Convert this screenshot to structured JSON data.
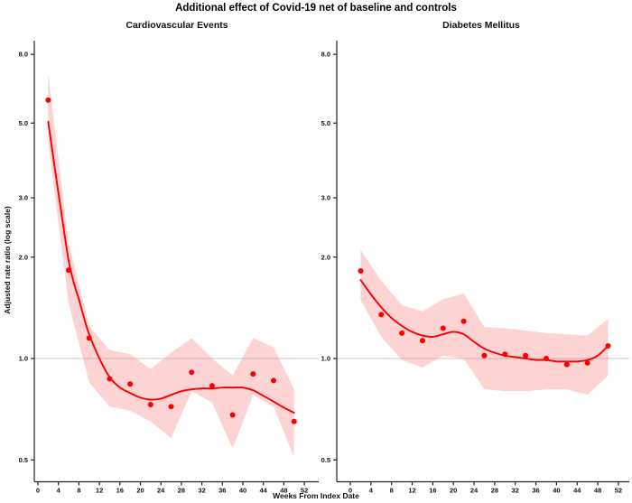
{
  "title": "Additional effect of Covid-19 net of baseline and controls",
  "x_axis_label": "Weeks From Index Date",
  "y_axis_label": "Adjusted rate ratio (log scale)",
  "colors": {
    "line": "#f80000",
    "point": "#f80000",
    "ribbon_fill": "rgba(247,96,100,0.28)",
    "gridline": "#c9c9c9",
    "axis": "#222222",
    "tick_text": "#111111"
  },
  "chart_data": [
    {
      "type": "line",
      "panel_title": "Cardiovascular Events",
      "y_scale": "log",
      "reference_line_y": 1.0,
      "x_ticks": [
        0,
        4,
        8,
        12,
        16,
        20,
        24,
        28,
        32,
        36,
        40,
        44,
        48,
        52
      ],
      "y_tick_labels": [
        "8.0",
        "5.0",
        "3.0",
        "2.0",
        "1.0",
        "0.5"
      ],
      "y_tick_values": [
        8,
        5,
        3,
        2,
        1,
        0.5
      ],
      "xlim": [
        -0.7,
        54.8
      ],
      "ylim": [
        0.43,
        8.8
      ],
      "weeks": [
        2,
        6,
        10,
        14,
        18,
        22,
        26,
        30,
        34,
        38,
        42,
        46,
        50
      ],
      "points": [
        5.85,
        1.83,
        1.15,
        0.87,
        0.84,
        0.73,
        0.72,
        0.91,
        0.83,
        0.68,
        0.9,
        0.86,
        0.65
      ],
      "ribbon_upper": [
        7.0,
        2.2,
        1.25,
        1.06,
        1.03,
        0.93,
        1.04,
        1.15,
        1.0,
        0.89,
        1.15,
        1.08,
        0.81
      ],
      "ribbon_lower": [
        4.4,
        1.46,
        0.85,
        0.72,
        0.7,
        0.65,
        0.58,
        0.8,
        0.74,
        0.54,
        0.78,
        0.72,
        0.51
      ],
      "smooth_line": {
        "x": [
          2,
          3,
          4,
          5,
          6,
          7,
          8,
          9,
          10,
          12,
          14,
          16,
          18,
          20,
          22,
          24,
          26,
          28,
          30,
          32,
          34,
          36,
          38,
          40,
          42,
          44,
          46,
          48,
          50
        ],
        "y": [
          5.05,
          3.95,
          3.1,
          2.45,
          1.95,
          1.68,
          1.5,
          1.32,
          1.18,
          1.0,
          0.88,
          0.82,
          0.79,
          0.765,
          0.755,
          0.76,
          0.78,
          0.8,
          0.81,
          0.815,
          0.815,
          0.82,
          0.82,
          0.82,
          0.805,
          0.775,
          0.745,
          0.715,
          0.69
        ]
      }
    },
    {
      "type": "line",
      "panel_title": "Diabetes Mellitus",
      "y_scale": "log",
      "reference_line_y": 1.0,
      "x_ticks": [
        0,
        4,
        8,
        12,
        16,
        20,
        24,
        28,
        32,
        36,
        40,
        44,
        48,
        52
      ],
      "y_tick_labels": [
        "8.0",
        "5.0",
        "3.0",
        "2.0",
        "1.0",
        "0.5"
      ],
      "y_tick_values": [
        8,
        5,
        3,
        2,
        1,
        0.5
      ],
      "xlim": [
        -2.6,
        54.1
      ],
      "ylim": [
        0.43,
        8.8
      ],
      "weeks": [
        2,
        6,
        10,
        14,
        18,
        22,
        26,
        30,
        34,
        38,
        42,
        46,
        50
      ],
      "points": [
        1.82,
        1.35,
        1.19,
        1.13,
        1.23,
        1.29,
        1.02,
        1.03,
        1.02,
        1.0,
        0.96,
        0.97,
        1.09
      ],
      "ribbon_upper": [
        2.1,
        1.7,
        1.44,
        1.38,
        1.5,
        1.56,
        1.24,
        1.23,
        1.21,
        1.19,
        1.18,
        1.17,
        1.31
      ],
      "ribbon_lower": [
        1.49,
        1.16,
        0.99,
        0.94,
        1.02,
        1.0,
        0.81,
        0.8,
        0.8,
        0.81,
        0.81,
        0.78,
        0.89
      ],
      "smooth_line": {
        "x": [
          2,
          4,
          6,
          8,
          10,
          12,
          14,
          16,
          18,
          20,
          22,
          24,
          26,
          28,
          30,
          32,
          34,
          36,
          38,
          40,
          42,
          44,
          46,
          48,
          50
        ],
        "y": [
          1.71,
          1.55,
          1.42,
          1.32,
          1.25,
          1.2,
          1.17,
          1.16,
          1.18,
          1.2,
          1.18,
          1.12,
          1.07,
          1.04,
          1.02,
          1.01,
          1.0,
          0.99,
          0.99,
          0.98,
          0.98,
          0.98,
          0.99,
          1.02,
          1.09
        ]
      }
    }
  ]
}
